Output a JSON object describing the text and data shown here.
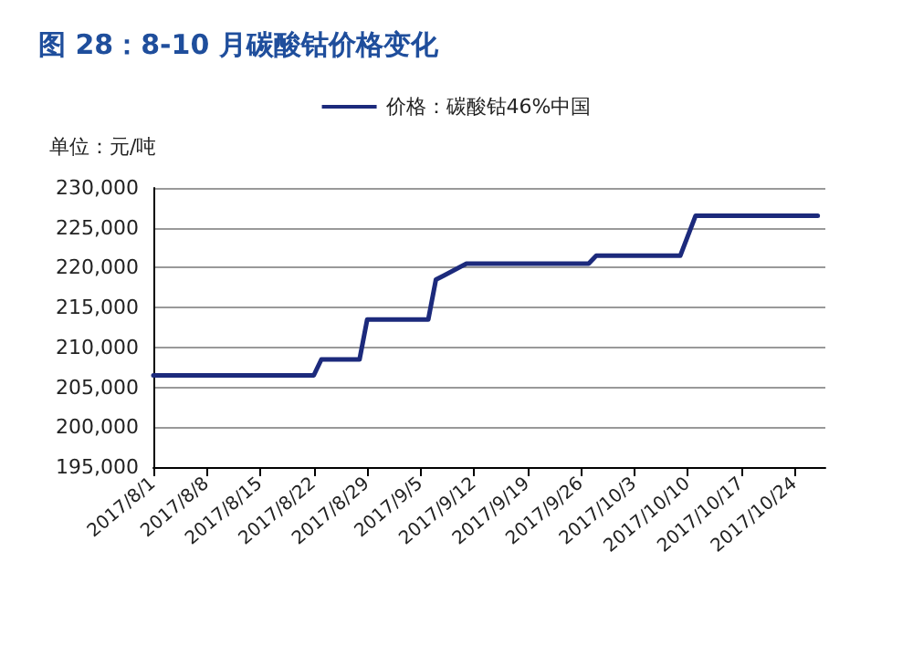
{
  "chart_data": {
    "type": "line",
    "title": "图 28：8-10 月碳酸钴价格变化",
    "ylabel": "单位：元/吨",
    "x": [
      "2017-08-01",
      "2017-08-22",
      "2017-08-23",
      "2017-08-28",
      "2017-08-29",
      "2017-09-06",
      "2017-09-07",
      "2017-09-08",
      "2017-09-11",
      "2017-09-27",
      "2017-09-28",
      "2017-10-09",
      "2017-10-11",
      "2017-10-27"
    ],
    "series": [
      {
        "name": "价格：碳酸钴46%中国",
        "color": "#1c2a7c",
        "values": [
          206500,
          206500,
          208500,
          208500,
          213500,
          213500,
          218500,
          219000,
          220500,
          220500,
          221500,
          221500,
          226500,
          226500
        ]
      }
    ],
    "xlim": [
      "2017-08-01",
      "2017-10-28"
    ],
    "xticks": [
      {
        "value": "2017-08-01",
        "label": "2017/8/1"
      },
      {
        "value": "2017-08-08",
        "label": "2017/8/8"
      },
      {
        "value": "2017-08-15",
        "label": "2017/8/15"
      },
      {
        "value": "2017-08-22",
        "label": "2017/8/22"
      },
      {
        "value": "2017-08-29",
        "label": "2017/8/29"
      },
      {
        "value": "2017-09-05",
        "label": "2017/9/5"
      },
      {
        "value": "2017-09-12",
        "label": "2017/9/12"
      },
      {
        "value": "2017-09-19",
        "label": "2017/9/19"
      },
      {
        "value": "2017-09-26",
        "label": "2017/9/26"
      },
      {
        "value": "2017-10-03",
        "label": "2017/10/3"
      },
      {
        "value": "2017-10-10",
        "label": "2017/10/10"
      },
      {
        "value": "2017-10-17",
        "label": "2017/10/17"
      },
      {
        "value": "2017-10-24",
        "label": "2017/10/24"
      }
    ],
    "ylim": [
      195000,
      230000
    ],
    "yticks": [
      {
        "value": 195000,
        "label": "195,000"
      },
      {
        "value": 200000,
        "label": "200,000"
      },
      {
        "value": 205000,
        "label": "205,000"
      },
      {
        "value": 210000,
        "label": "210,000"
      },
      {
        "value": 215000,
        "label": "215,000"
      },
      {
        "value": 220000,
        "label": "220,000"
      },
      {
        "value": 225000,
        "label": "225,000"
      },
      {
        "value": 230000,
        "label": "230,000"
      }
    ],
    "grid": "y",
    "legend": "top",
    "marker": "none",
    "line_style": "solid"
  }
}
